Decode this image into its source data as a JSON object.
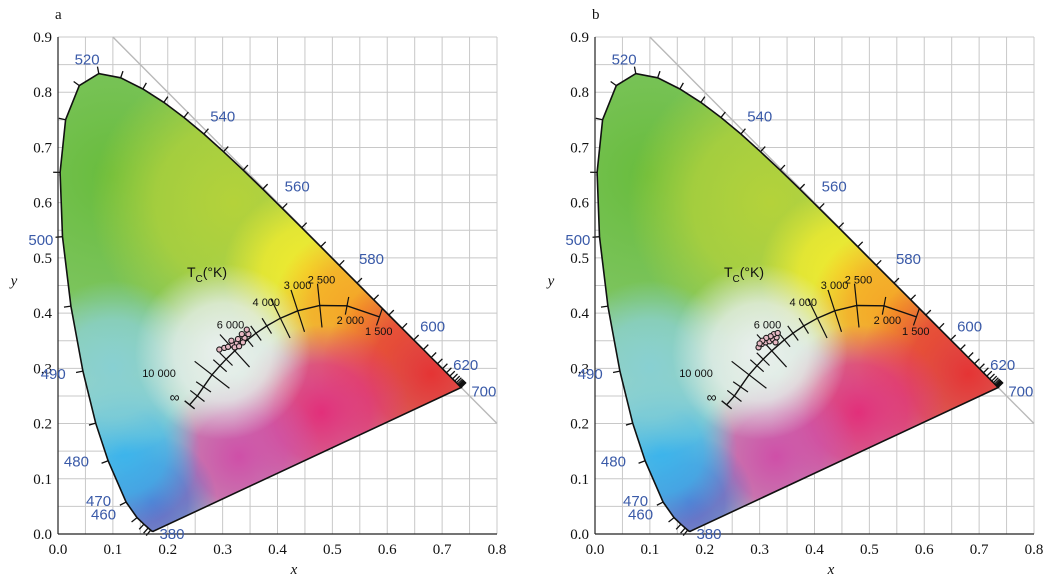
{
  "colors": {
    "wavelength_label": "#3a5aa8",
    "grid": "#c8c8c8",
    "locus": "#111111",
    "point_fill": "#e7b9c4"
  },
  "chart_data": [
    {
      "type": "scatter",
      "panel_label": "a",
      "xlabel": "x",
      "ylabel": "y",
      "xlim": [
        0,
        0.8
      ],
      "ylim": [
        0,
        0.9
      ],
      "grid": true,
      "xticks": [
        "0.0",
        "0.1",
        "0.2",
        "0.3",
        "0.4",
        "0.5",
        "0.6",
        "0.7",
        "0.8"
      ],
      "yticks": [
        "0.0",
        "0.1",
        "0.2",
        "0.3",
        "0.4",
        "0.5",
        "0.6",
        "0.7",
        "0.8",
        "0.9"
      ],
      "spectral_locus_labels": [
        {
          "label": "380",
          "x": 0.174,
          "y": 0.005
        },
        {
          "label": "460",
          "x": 0.144,
          "y": 0.03
        },
        {
          "label": "470",
          "x": 0.124,
          "y": 0.058
        },
        {
          "label": "480",
          "x": 0.091,
          "y": 0.133
        },
        {
          "label": "490",
          "x": 0.045,
          "y": 0.295
        },
        {
          "label": "500",
          "x": 0.008,
          "y": 0.538
        },
        {
          "label": "520",
          "x": 0.074,
          "y": 0.834
        },
        {
          "label": "540",
          "x": 0.23,
          "y": 0.754
        },
        {
          "label": "560",
          "x": 0.373,
          "y": 0.624
        },
        {
          "label": "580",
          "x": 0.512,
          "y": 0.487
        },
        {
          "label": "600",
          "x": 0.627,
          "y": 0.372
        },
        {
          "label": "620",
          "x": 0.691,
          "y": 0.308
        },
        {
          "label": "700",
          "x": 0.735,
          "y": 0.265
        }
      ],
      "planckian_cct_labels": [
        {
          "label": "10 000",
          "x": 0.281,
          "y": 0.288
        },
        {
          "label": "6 000",
          "x": 0.322,
          "y": 0.332
        },
        {
          "label": "4 000",
          "x": 0.38,
          "y": 0.377
        },
        {
          "label": "3 000",
          "x": 0.437,
          "y": 0.404
        },
        {
          "label": "2 500",
          "x": 0.477,
          "y": 0.414
        },
        {
          "label": "2 000",
          "x": 0.526,
          "y": 0.413
        },
        {
          "label": "1 500",
          "x": 0.585,
          "y": 0.393
        }
      ],
      "infinity_label": "∞",
      "tc_label": "T",
      "tc_sub": "C",
      "tc_unit": "(°K)",
      "points": [
        {
          "x": 0.294,
          "y": 0.334
        },
        {
          "x": 0.303,
          "y": 0.337
        },
        {
          "x": 0.31,
          "y": 0.339
        },
        {
          "x": 0.318,
          "y": 0.343
        },
        {
          "x": 0.326,
          "y": 0.345
        },
        {
          "x": 0.333,
          "y": 0.35
        },
        {
          "x": 0.34,
          "y": 0.355
        },
        {
          "x": 0.347,
          "y": 0.362
        },
        {
          "x": 0.322,
          "y": 0.338
        },
        {
          "x": 0.33,
          "y": 0.34
        },
        {
          "x": 0.337,
          "y": 0.347
        },
        {
          "x": 0.316,
          "y": 0.35
        },
        {
          "x": 0.328,
          "y": 0.353
        },
        {
          "x": 0.344,
          "y": 0.37
        },
        {
          "x": 0.335,
          "y": 0.362
        }
      ]
    },
    {
      "type": "scatter",
      "panel_label": "b",
      "xlabel": "x",
      "ylabel": "y",
      "xlim": [
        0,
        0.8
      ],
      "ylim": [
        0,
        0.9
      ],
      "grid": true,
      "xticks": [
        "0.0",
        "0.1",
        "0.2",
        "0.3",
        "0.4",
        "0.5",
        "0.6",
        "0.7",
        "0.8"
      ],
      "yticks": [
        "0.0",
        "0.1",
        "0.2",
        "0.3",
        "0.4",
        "0.5",
        "0.6",
        "0.7",
        "0.8",
        "0.9"
      ],
      "spectral_locus_labels": [
        {
          "label": "380",
          "x": 0.174,
          "y": 0.005
        },
        {
          "label": "460",
          "x": 0.144,
          "y": 0.03
        },
        {
          "label": "470",
          "x": 0.124,
          "y": 0.058
        },
        {
          "label": "480",
          "x": 0.091,
          "y": 0.133
        },
        {
          "label": "490",
          "x": 0.045,
          "y": 0.295
        },
        {
          "label": "500",
          "x": 0.008,
          "y": 0.538
        },
        {
          "label": "520",
          "x": 0.074,
          "y": 0.834
        },
        {
          "label": "540",
          "x": 0.23,
          "y": 0.754
        },
        {
          "label": "560",
          "x": 0.373,
          "y": 0.624
        },
        {
          "label": "580",
          "x": 0.512,
          "y": 0.487
        },
        {
          "label": "600",
          "x": 0.627,
          "y": 0.372
        },
        {
          "label": "620",
          "x": 0.691,
          "y": 0.308
        },
        {
          "label": "700",
          "x": 0.735,
          "y": 0.265
        }
      ],
      "planckian_cct_labels": [
        {
          "label": "10 000",
          "x": 0.281,
          "y": 0.288
        },
        {
          "label": "6 000",
          "x": 0.322,
          "y": 0.332
        },
        {
          "label": "4 000",
          "x": 0.38,
          "y": 0.377
        },
        {
          "label": "3 000",
          "x": 0.437,
          "y": 0.404
        },
        {
          "label": "2 500",
          "x": 0.477,
          "y": 0.414
        },
        {
          "label": "2 000",
          "x": 0.526,
          "y": 0.413
        },
        {
          "label": "1 500",
          "x": 0.585,
          "y": 0.393
        }
      ],
      "infinity_label": "∞",
      "tc_label": "T",
      "tc_sub": "C",
      "tc_unit": "(°K)",
      "points": [
        {
          "x": 0.298,
          "y": 0.338
        },
        {
          "x": 0.304,
          "y": 0.344
        },
        {
          "x": 0.311,
          "y": 0.347
        },
        {
          "x": 0.318,
          "y": 0.349
        },
        {
          "x": 0.324,
          "y": 0.353
        },
        {
          "x": 0.331,
          "y": 0.356
        },
        {
          "x": 0.326,
          "y": 0.362
        },
        {
          "x": 0.32,
          "y": 0.358
        },
        {
          "x": 0.312,
          "y": 0.355
        },
        {
          "x": 0.305,
          "y": 0.35
        },
        {
          "x": 0.329,
          "y": 0.347
        },
        {
          "x": 0.333,
          "y": 0.364
        },
        {
          "x": 0.3,
          "y": 0.345
        }
      ]
    }
  ]
}
